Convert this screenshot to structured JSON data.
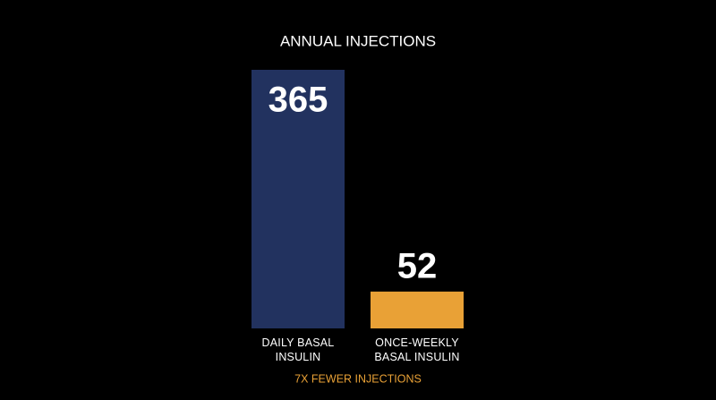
{
  "chart_data": {
    "type": "bar",
    "title": "ANNUAL INJECTIONS",
    "categories": [
      "DAILY BASAL\nINSULIN",
      "ONCE-WEEKLY\nBASAL INSULIN"
    ],
    "series": [
      {
        "values": [
          365,
          52
        ],
        "colors": [
          "#22325f",
          "#e9a136"
        ]
      }
    ],
    "annotation": "7X FEWER INJECTIONS",
    "annotation_color": "#e9a136"
  }
}
